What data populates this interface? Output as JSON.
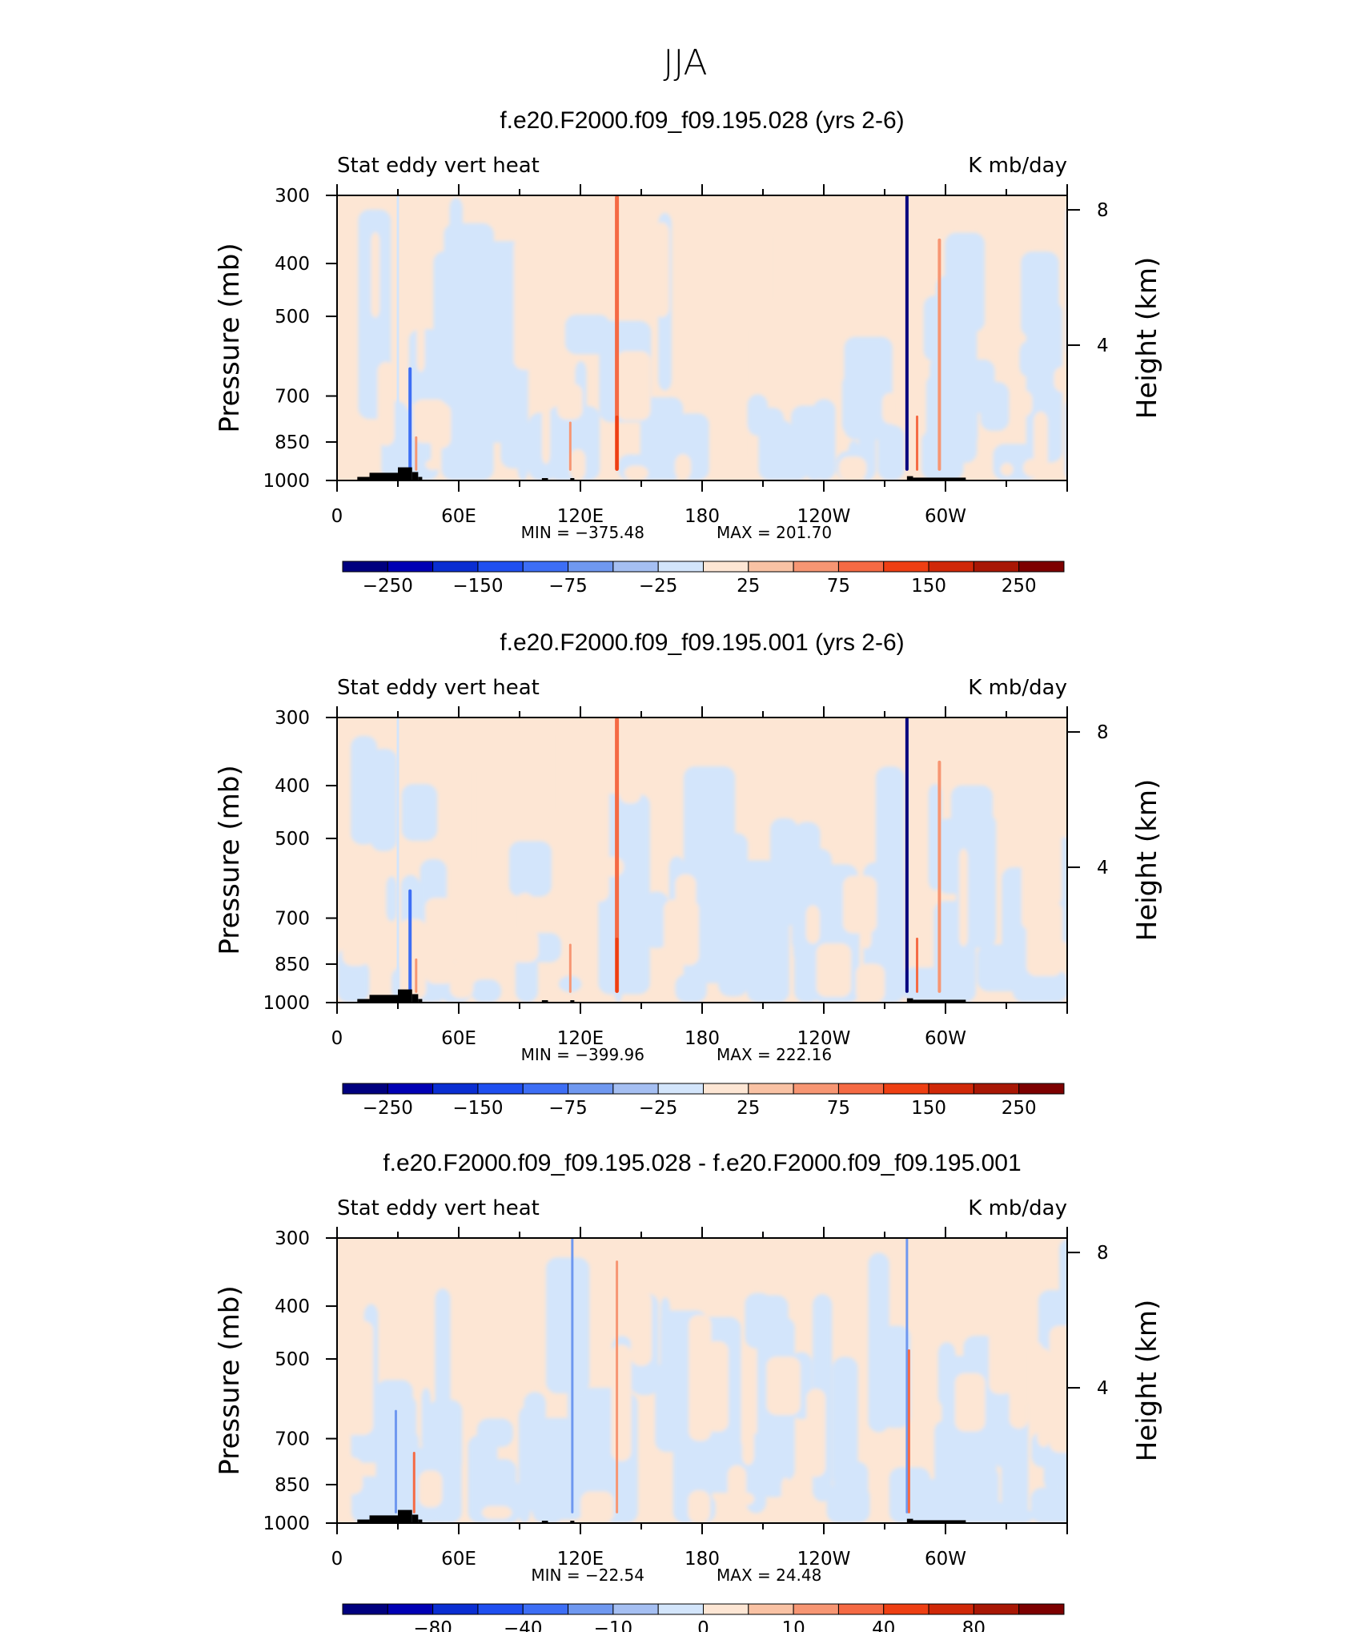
{
  "figure": {
    "title": "JJA"
  },
  "chart_data": [
    {
      "type": "heatmap",
      "title": "f.e20.F2000.f09_f09.195.028 (yrs 2-6)",
      "left_string": "Stat eddy vert heat",
      "right_string": "K mb/day",
      "ylabel": "Pressure (mb)",
      "ylabel_right": "Height (km)",
      "x_ticks": [
        "0",
        "60E",
        "120E",
        "180",
        "120W",
        "60W"
      ],
      "x_tick_values": [
        0,
        60,
        120,
        180,
        240,
        300
      ],
      "xlim": [
        0,
        360
      ],
      "y_ticks": [
        "300",
        "400",
        "500",
        "700",
        "850",
        "1000"
      ],
      "y_tick_values": [
        300,
        400,
        500,
        700,
        850,
        1000
      ],
      "ylim": [
        1000,
        300
      ],
      "y_scale": "log",
      "right_ticks": [
        "8",
        "4"
      ],
      "right_tick_values": [
        8,
        4
      ],
      "min_label": "MIN = −375.48",
      "max_label": "MAX = 201.70",
      "min": -375.48,
      "max": 201.7,
      "levels": [
        -300,
        -250,
        -200,
        -150,
        -100,
        -75,
        -50,
        -25,
        0,
        25,
        50,
        75,
        100,
        150,
        200,
        250,
        300
      ],
      "colorbar_labels": [
        "−250",
        "−150",
        "−75",
        "−25",
        "25",
        "75",
        "150",
        "250"
      ],
      "features": [
        {
          "lon": 30,
          "p_top": 300,
          "value": -20,
          "width": 3
        },
        {
          "lon": 36,
          "p_top": 620,
          "value": -90,
          "width": 4
        },
        {
          "lon": 39,
          "p_top": 830,
          "value": 60,
          "width": 3
        },
        {
          "lon": 138,
          "p_top": 300,
          "value": 80,
          "width": 5
        },
        {
          "lon": 138,
          "p_top": 760,
          "value": 110,
          "width": 4
        },
        {
          "lon": 115,
          "p_top": 780,
          "value": 55,
          "width": 3
        },
        {
          "lon": 281,
          "p_top": 300,
          "value": -375,
          "width": 4
        },
        {
          "lon": 286,
          "p_top": 760,
          "value": 80,
          "width": 3
        },
        {
          "lon": 297,
          "p_top": 360,
          "value": 70,
          "width": 4
        }
      ]
    },
    {
      "type": "heatmap",
      "title": "f.e20.F2000.f09_f09.195.001 (yrs 2-6)",
      "left_string": "Stat eddy vert heat",
      "right_string": "K mb/day",
      "ylabel": "Pressure (mb)",
      "ylabel_right": "Height (km)",
      "x_ticks": [
        "0",
        "60E",
        "120E",
        "180",
        "120W",
        "60W"
      ],
      "x_tick_values": [
        0,
        60,
        120,
        180,
        240,
        300
      ],
      "xlim": [
        0,
        360
      ],
      "y_ticks": [
        "300",
        "400",
        "500",
        "700",
        "850",
        "1000"
      ],
      "y_tick_values": [
        300,
        400,
        500,
        700,
        850,
        1000
      ],
      "ylim": [
        1000,
        300
      ],
      "y_scale": "log",
      "right_ticks": [
        "8",
        "4"
      ],
      "right_tick_values": [
        8,
        4
      ],
      "min_label": "MIN = −399.96",
      "max_label": "MAX = 222.16",
      "min": -399.96,
      "max": 222.16,
      "levels": [
        -300,
        -250,
        -200,
        -150,
        -100,
        -75,
        -50,
        -25,
        0,
        25,
        50,
        75,
        100,
        150,
        200,
        250,
        300
      ],
      "colorbar_labels": [
        "−250",
        "−150",
        "−75",
        "−25",
        "25",
        "75",
        "150",
        "250"
      ],
      "features": [
        {
          "lon": 30,
          "p_top": 300,
          "value": -20,
          "width": 3
        },
        {
          "lon": 36,
          "p_top": 620,
          "value": -95,
          "width": 4
        },
        {
          "lon": 39,
          "p_top": 830,
          "value": 65,
          "width": 3
        },
        {
          "lon": 138,
          "p_top": 300,
          "value": 80,
          "width": 5
        },
        {
          "lon": 138,
          "p_top": 760,
          "value": 115,
          "width": 4
        },
        {
          "lon": 115,
          "p_top": 780,
          "value": 55,
          "width": 3
        },
        {
          "lon": 281,
          "p_top": 300,
          "value": -400,
          "width": 4
        },
        {
          "lon": 286,
          "p_top": 760,
          "value": 85,
          "width": 3
        },
        {
          "lon": 297,
          "p_top": 360,
          "value": 70,
          "width": 4
        }
      ]
    },
    {
      "type": "heatmap",
      "title": "f.e20.F2000.f09_f09.195.028 - f.e20.F2000.f09_f09.195.001",
      "left_string": "Stat eddy vert heat",
      "right_string": "K mb/day",
      "ylabel": "Pressure (mb)",
      "ylabel_right": "Height (km)",
      "x_ticks": [
        "0",
        "60E",
        "120E",
        "180",
        "120W",
        "60W"
      ],
      "x_tick_values": [
        0,
        60,
        120,
        180,
        240,
        300
      ],
      "xlim": [
        0,
        360
      ],
      "y_ticks": [
        "300",
        "400",
        "500",
        "700",
        "850",
        "1000"
      ],
      "y_tick_values": [
        300,
        400,
        500,
        700,
        850,
        1000
      ],
      "ylim": [
        1000,
        300
      ],
      "y_scale": "log",
      "right_ticks": [
        "8",
        "4"
      ],
      "right_tick_values": [
        8,
        4
      ],
      "min_label": "MIN = −22.54",
      "max_label": "MAX =  24.48",
      "min": -22.54,
      "max": 24.48,
      "levels": [
        -100,
        -80,
        -60,
        -40,
        -20,
        -10,
        -5,
        -1,
        0,
        1,
        5,
        10,
        20,
        40,
        60,
        80,
        100
      ],
      "colorbar_labels": [
        "−80",
        "−40",
        "−10",
        "0",
        "10",
        "40",
        "80"
      ],
      "features": [
        {
          "lon": 29,
          "p_top": 620,
          "value": -8,
          "width": 3
        },
        {
          "lon": 38,
          "p_top": 740,
          "value": 10,
          "width": 3
        },
        {
          "lon": 116,
          "p_top": 300,
          "value": -8,
          "width": 3
        },
        {
          "lon": 138,
          "p_top": 330,
          "value": 7,
          "width": 3
        },
        {
          "lon": 281,
          "p_top": 300,
          "value": -8,
          "width": 3
        },
        {
          "lon": 282,
          "p_top": 480,
          "value": 15,
          "width": 3
        }
      ]
    }
  ],
  "colors": {
    "colormap": [
      "#00007f",
      "#0000b4",
      "#0a2ed2",
      "#1f4ff0",
      "#3d6ef5",
      "#6f98f0",
      "#a5bff2",
      "#d3e5fb",
      "#fde6d4",
      "#f9c2a4",
      "#f79673",
      "#f56a44",
      "#ee3f13",
      "#d02808",
      "#a81705",
      "#7d0000"
    ],
    "topography": "#000000"
  }
}
